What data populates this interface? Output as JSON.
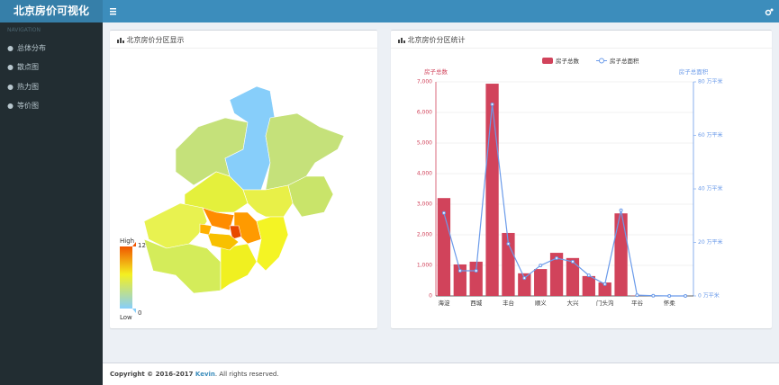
{
  "header": {
    "title": "北京房价可视化"
  },
  "sidebar": {
    "heading": "NAVIGATION",
    "items": [
      "总体分布",
      "散点图",
      "热力图",
      "等价图"
    ]
  },
  "map_panel": {
    "title": "北京房价分区显示",
    "visual_map": {
      "high": "High",
      "low": "Low",
      "max": 12,
      "min": 0
    }
  },
  "chart_panel": {
    "title": "北京房价分区统计"
  },
  "chart_data": {
    "type": "bar",
    "categories": [
      "海淀",
      null,
      "西城",
      null,
      "丰台",
      null,
      "顺义",
      null,
      "大兴",
      null,
      "门头沟",
      null,
      "平谷",
      null,
      "怀柔",
      null
    ],
    "series": [
      {
        "name": "房子总数",
        "type": "bar",
        "color": "#d1435b",
        "values": [
          3200,
          1030,
          1120,
          6940,
          2060,
          740,
          880,
          1410,
          1240,
          650,
          440,
          2700,
          10,
          0,
          0,
          0
        ]
      },
      {
        "name": "房子总面积",
        "type": "line",
        "axis": "y2",
        "color": "#6b9bea",
        "values": [
          31,
          9.4,
          9.4,
          71.6,
          19.5,
          6.7,
          11.4,
          14.1,
          12.8,
          7.7,
          4.4,
          32,
          0.3,
          0.1,
          0,
          0
        ]
      }
    ],
    "y_label": "房子总数",
    "y2_label": "房子总面积",
    "ylim": [
      0,
      7000
    ],
    "yticks": [
      0,
      {
        "value": 1000,
        "label": "1,000"
      },
      {
        "value": 2000,
        "label": "2,000"
      },
      {
        "value": 3000,
        "label": "3,000"
      },
      {
        "value": 4000,
        "label": "4,000"
      },
      {
        "value": 5000,
        "label": "5,000"
      },
      {
        "value": 6000,
        "label": "6,000"
      },
      {
        "value": 7000,
        "label": "7,000"
      }
    ],
    "y2lim": [
      0,
      80
    ],
    "y2ticks": [
      {
        "value": 0,
        "label": "0 万平米"
      },
      {
        "value": 20,
        "label": "20 万平米"
      },
      {
        "value": 40,
        "label": "40 万平米"
      },
      {
        "value": 60,
        "label": "60 万平米"
      },
      {
        "value": 80,
        "label": "80 万平米"
      }
    ],
    "grid": true,
    "legend": "top"
  },
  "footer": {
    "prefix": "Copyright © 2016-2017 ",
    "author": "Kevin",
    "suffix": ". All rights reserved."
  }
}
